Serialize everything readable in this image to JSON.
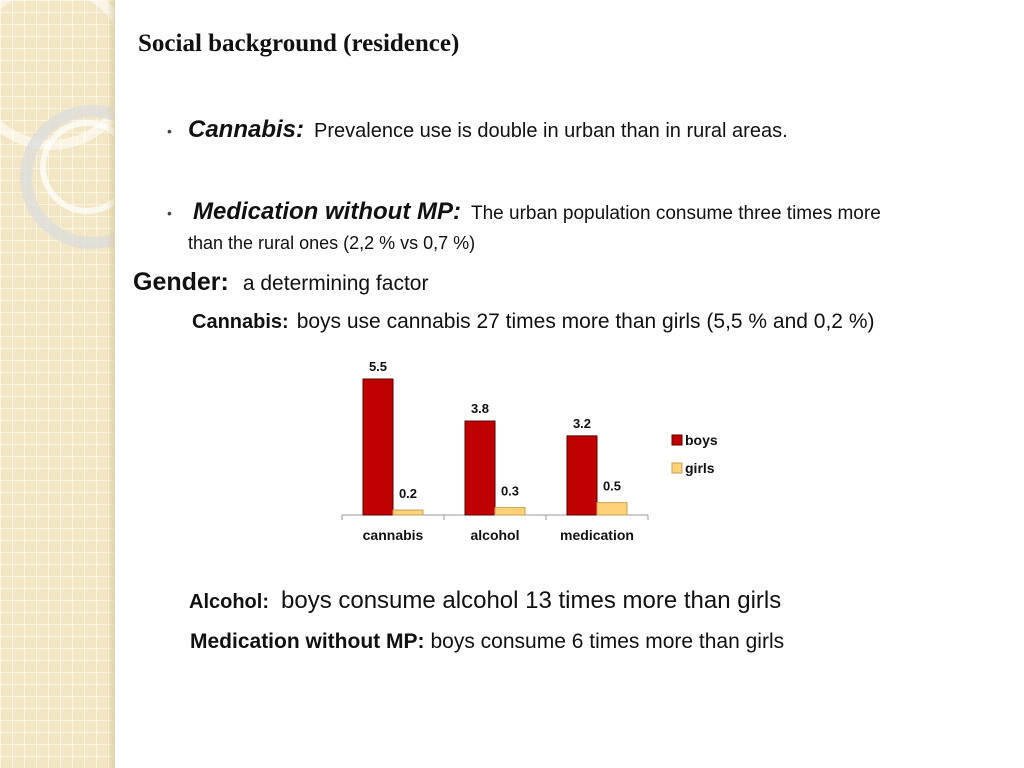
{
  "title": "Social background (residence)",
  "bullets": [
    {
      "lead": "Cannabis:",
      "text": "Prevalence use is double in urban than in rural areas."
    },
    {
      "lead": "Medication without MP:",
      "text": "The urban population consume three times more",
      "text2": "than the rural ones (2,2 % vs 0,7 %)"
    }
  ],
  "gender": {
    "lead": "Gender:",
    "text": "a determining factor"
  },
  "cannabis_gender": {
    "lead": "Cannabis:",
    "text": "boys use cannabis 27 times more than girls (5,5 % and 0,2 %)"
  },
  "alcohol_gender": {
    "lead": "Alcohol:",
    "text": "boys consume alcohol 13 times more than girls"
  },
  "medication_gender": {
    "lead": "Medication without MP:",
    "text": "boys consume 6 times more than girls"
  },
  "colors": {
    "boys": "#c00000",
    "girls": "#ffd27a"
  },
  "chart_data": {
    "type": "bar",
    "categories": [
      "cannabis",
      "alcohol",
      "medication"
    ],
    "series": [
      {
        "name": "boys",
        "values": [
          5.5,
          3.8,
          3.2
        ],
        "color": "#c00000"
      },
      {
        "name": "girls",
        "values": [
          0.2,
          0.3,
          0.5
        ],
        "color": "#ffd27a"
      }
    ],
    "data_labels": [
      "5.5",
      "3.8",
      "3.2",
      "0.2",
      "0.3",
      "0.5"
    ],
    "ylim": [
      0,
      5.5
    ],
    "grid": false,
    "legend": "right"
  }
}
